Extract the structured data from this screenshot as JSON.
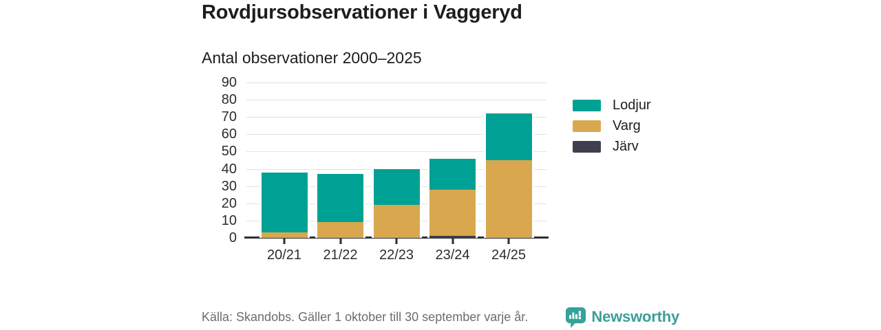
{
  "title": "Rovdjursobservationer i Vaggeryd",
  "subtitle": "Antal observationer 2000–2025",
  "footer": {
    "source": "Källa: Skandobs. Gäller 1 oktober till 30 september varje år.",
    "brand": "Newsworthy"
  },
  "colors": {
    "lodjur": "#00a195",
    "varg": "#d9a84e",
    "jarv": "#403f4e",
    "axis": "#2e2e2e",
    "gridline": "#e2e2e2",
    "source_text": "#6d6d6d",
    "brand_teal": "#3b9e98",
    "background": "#ffffff"
  },
  "chart_data": {
    "type": "bar",
    "stacked": true,
    "title": "Rovdjursobservationer i Vaggeryd",
    "subtitle": "Antal observationer 2000–2025",
    "categories": [
      "20/21",
      "21/22",
      "22/23",
      "23/24",
      "24/25"
    ],
    "series": [
      {
        "name": "Lodjur",
        "color": "#00a195",
        "values": [
          35,
          28,
          21,
          18,
          27
        ]
      },
      {
        "name": "Varg",
        "color": "#d9a84e",
        "values": [
          3,
          9,
          19,
          27,
          45
        ]
      },
      {
        "name": "Järv",
        "color": "#403f4e",
        "values": [
          0,
          0,
          0,
          1,
          0
        ]
      }
    ],
    "totals": [
      38,
      37,
      40,
      46,
      72
    ],
    "xlabel": "",
    "ylabel": "",
    "ylim": [
      0,
      90
    ],
    "yticks": [
      0,
      10,
      20,
      30,
      40,
      50,
      60,
      70,
      80,
      90
    ],
    "grid": true,
    "legend_position": "right"
  }
}
